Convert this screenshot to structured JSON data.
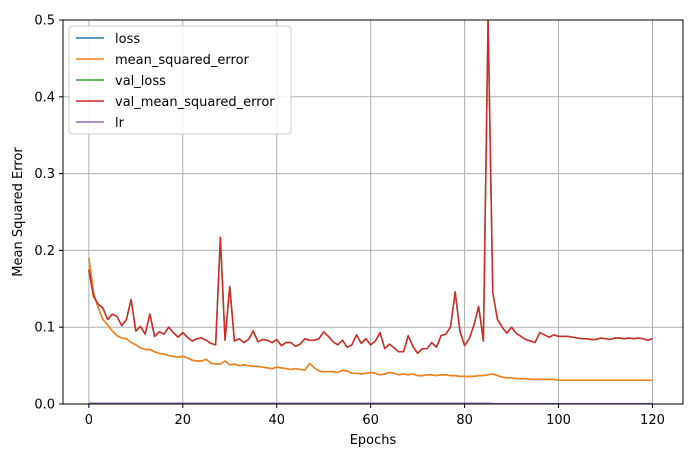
{
  "chart_data": {
    "type": "line",
    "xlabel": "Epochs",
    "ylabel": "Mean Squared Error",
    "xlim": [
      -5.5,
      126.5
    ],
    "ylim": [
      0,
      0.5
    ],
    "xticks": [
      0,
      20,
      40,
      60,
      80,
      100,
      120
    ],
    "yticks": [
      0.0,
      0.1,
      0.2,
      0.3,
      0.4,
      0.5
    ],
    "xtick_labels": [
      "0",
      "20",
      "40",
      "60",
      "80",
      "100",
      "120"
    ],
    "ytick_labels": [
      "0.0",
      "0.1",
      "0.2",
      "0.3",
      "0.4",
      "0.5"
    ],
    "grid": true,
    "legend_position": "top-left",
    "x": [
      0,
      1,
      2,
      3,
      4,
      5,
      6,
      7,
      8,
      9,
      10,
      11,
      12,
      13,
      14,
      15,
      16,
      17,
      18,
      19,
      20,
      21,
      22,
      23,
      24,
      25,
      26,
      27,
      28,
      29,
      30,
      31,
      32,
      33,
      34,
      35,
      36,
      37,
      38,
      39,
      40,
      41,
      42,
      43,
      44,
      45,
      46,
      47,
      48,
      49,
      50,
      51,
      52,
      53,
      54,
      55,
      56,
      57,
      58,
      59,
      60,
      61,
      62,
      63,
      64,
      65,
      66,
      67,
      68,
      69,
      70,
      71,
      72,
      73,
      74,
      75,
      76,
      77,
      78,
      79,
      80,
      81,
      82,
      83,
      84,
      85,
      86,
      87,
      88,
      89,
      90,
      91,
      92,
      93,
      94,
      95,
      96,
      97,
      98,
      99,
      100,
      101,
      102,
      103,
      104,
      105,
      106,
      107,
      108,
      109,
      110,
      111,
      112,
      113,
      114,
      115,
      116,
      117,
      118,
      119,
      120
    ],
    "series": [
      {
        "name": "loss",
        "color": "#1f77b4",
        "values": [
          0.19,
          0.145,
          0.125,
          0.11,
          0.103,
          0.095,
          0.089,
          0.086,
          0.085,
          0.08,
          0.077,
          0.073,
          0.071,
          0.071,
          0.068,
          0.066,
          0.065,
          0.063,
          0.062,
          0.061,
          0.062,
          0.06,
          0.057,
          0.056,
          0.056,
          0.058,
          0.053,
          0.052,
          0.052,
          0.056,
          0.051,
          0.052,
          0.05,
          0.051,
          0.05,
          0.049,
          0.049,
          0.048,
          0.047,
          0.046,
          0.048,
          0.047,
          0.046,
          0.045,
          0.046,
          0.045,
          0.044,
          0.053,
          0.047,
          0.043,
          0.042,
          0.042,
          0.042,
          0.041,
          0.044,
          0.043,
          0.04,
          0.04,
          0.039,
          0.04,
          0.041,
          0.04,
          0.038,
          0.039,
          0.041,
          0.04,
          0.038,
          0.039,
          0.038,
          0.039,
          0.037,
          0.037,
          0.038,
          0.038,
          0.037,
          0.038,
          0.038,
          0.037,
          0.037,
          0.036,
          0.036,
          0.036,
          0.036,
          0.037,
          0.037,
          0.038,
          0.039,
          0.037,
          0.035,
          0.034,
          0.034,
          0.033,
          0.033,
          0.033,
          0.032,
          0.032,
          0.032,
          0.032,
          0.032,
          0.032,
          0.031,
          0.031,
          0.031,
          0.031,
          0.031,
          0.031,
          0.031,
          0.031,
          0.031,
          0.031,
          0.031,
          0.031,
          0.031,
          0.031,
          0.031,
          0.031,
          0.031,
          0.031,
          0.031,
          0.031,
          0.031
        ]
      },
      {
        "name": "mean_squared_error",
        "color": "#ff7f0e",
        "values": [
          0.19,
          0.145,
          0.125,
          0.11,
          0.103,
          0.095,
          0.089,
          0.086,
          0.085,
          0.08,
          0.077,
          0.073,
          0.071,
          0.071,
          0.068,
          0.066,
          0.065,
          0.063,
          0.062,
          0.061,
          0.062,
          0.06,
          0.057,
          0.056,
          0.056,
          0.058,
          0.053,
          0.052,
          0.052,
          0.056,
          0.051,
          0.052,
          0.05,
          0.051,
          0.05,
          0.049,
          0.049,
          0.048,
          0.047,
          0.046,
          0.048,
          0.047,
          0.046,
          0.045,
          0.046,
          0.045,
          0.044,
          0.053,
          0.047,
          0.043,
          0.042,
          0.042,
          0.042,
          0.041,
          0.044,
          0.043,
          0.04,
          0.04,
          0.039,
          0.04,
          0.041,
          0.04,
          0.038,
          0.039,
          0.041,
          0.04,
          0.038,
          0.039,
          0.038,
          0.039,
          0.037,
          0.037,
          0.038,
          0.038,
          0.037,
          0.038,
          0.038,
          0.037,
          0.037,
          0.036,
          0.036,
          0.036,
          0.036,
          0.037,
          0.037,
          0.038,
          0.039,
          0.037,
          0.035,
          0.034,
          0.034,
          0.033,
          0.033,
          0.033,
          0.032,
          0.032,
          0.032,
          0.032,
          0.032,
          0.032,
          0.031,
          0.031,
          0.031,
          0.031,
          0.031,
          0.031,
          0.031,
          0.031,
          0.031,
          0.031,
          0.031,
          0.031,
          0.031,
          0.031,
          0.031,
          0.031,
          0.031,
          0.031,
          0.031,
          0.031,
          0.031
        ]
      },
      {
        "name": "val_loss",
        "color": "#2ca02c",
        "values": [
          0.175,
          0.14,
          0.13,
          0.125,
          0.11,
          0.117,
          0.114,
          0.102,
          0.11,
          0.136,
          0.095,
          0.101,
          0.091,
          0.117,
          0.088,
          0.094,
          0.091,
          0.1,
          0.093,
          0.087,
          0.093,
          0.087,
          0.082,
          0.085,
          0.086,
          0.083,
          0.079,
          0.077,
          0.217,
          0.083,
          0.153,
          0.082,
          0.085,
          0.08,
          0.084,
          0.095,
          0.081,
          0.084,
          0.083,
          0.08,
          0.084,
          0.076,
          0.08,
          0.08,
          0.075,
          0.078,
          0.085,
          0.083,
          0.083,
          0.085,
          0.094,
          0.088,
          0.081,
          0.077,
          0.083,
          0.074,
          0.077,
          0.09,
          0.079,
          0.085,
          0.077,
          0.082,
          0.093,
          0.072,
          0.078,
          0.073,
          0.068,
          0.068,
          0.089,
          0.075,
          0.066,
          0.072,
          0.072,
          0.08,
          0.074,
          0.089,
          0.091,
          0.1,
          0.146,
          0.095,
          0.076,
          0.085,
          0.103,
          0.127,
          0.082,
          0.5,
          0.145,
          0.11,
          0.1,
          0.092,
          0.1,
          0.092,
          0.088,
          0.084,
          0.082,
          0.08,
          0.093,
          0.09,
          0.087,
          0.09,
          0.088,
          0.088,
          0.088,
          0.087,
          0.086,
          0.085,
          0.085,
          0.084,
          0.084,
          0.086,
          0.085,
          0.084,
          0.086,
          0.086,
          0.085,
          0.086,
          0.085,
          0.086,
          0.085,
          0.083,
          0.085
        ]
      },
      {
        "name": "val_mean_squared_error",
        "color": "#d62728",
        "values": [
          0.175,
          0.14,
          0.13,
          0.125,
          0.11,
          0.117,
          0.114,
          0.102,
          0.11,
          0.136,
          0.095,
          0.101,
          0.091,
          0.117,
          0.088,
          0.094,
          0.091,
          0.1,
          0.093,
          0.087,
          0.093,
          0.087,
          0.082,
          0.085,
          0.086,
          0.083,
          0.079,
          0.077,
          0.217,
          0.083,
          0.153,
          0.082,
          0.085,
          0.08,
          0.084,
          0.095,
          0.081,
          0.084,
          0.083,
          0.08,
          0.084,
          0.076,
          0.08,
          0.08,
          0.075,
          0.078,
          0.085,
          0.083,
          0.083,
          0.085,
          0.094,
          0.088,
          0.081,
          0.077,
          0.083,
          0.074,
          0.077,
          0.09,
          0.079,
          0.085,
          0.077,
          0.082,
          0.093,
          0.072,
          0.078,
          0.073,
          0.068,
          0.068,
          0.089,
          0.075,
          0.066,
          0.072,
          0.072,
          0.08,
          0.074,
          0.089,
          0.091,
          0.1,
          0.146,
          0.095,
          0.076,
          0.085,
          0.103,
          0.127,
          0.082,
          0.5,
          0.145,
          0.11,
          0.1,
          0.092,
          0.1,
          0.092,
          0.088,
          0.084,
          0.082,
          0.08,
          0.093,
          0.09,
          0.087,
          0.09,
          0.088,
          0.088,
          0.088,
          0.087,
          0.086,
          0.085,
          0.085,
          0.084,
          0.084,
          0.086,
          0.085,
          0.084,
          0.086,
          0.086,
          0.085,
          0.086,
          0.085,
          0.086,
          0.085,
          0.083,
          0.085
        ]
      },
      {
        "name": "lr",
        "color": "#9467bd",
        "values": [
          0.001,
          0.001,
          0.001,
          0.001,
          0.001,
          0.001,
          0.001,
          0.001,
          0.001,
          0.001,
          0.001,
          0.001,
          0.001,
          0.001,
          0.001,
          0.001,
          0.001,
          0.001,
          0.001,
          0.001,
          0.001,
          0.001,
          0.001,
          0.001,
          0.001,
          0.001,
          0.001,
          0.001,
          0.001,
          0.001,
          0.001,
          0.001,
          0.001,
          0.001,
          0.001,
          0.001,
          0.001,
          0.001,
          0.001,
          0.001,
          0.001,
          0.001,
          0.001,
          0.001,
          0.001,
          0.001,
          0.001,
          0.001,
          0.001,
          0.001,
          0.001,
          0.001,
          0.001,
          0.001,
          0.001,
          0.001,
          0.001,
          0.001,
          0.001,
          0.001,
          0.001,
          0.001,
          0.001,
          0.001,
          0.001,
          0.001,
          0.001,
          0.001,
          0.001,
          0.001,
          0.001,
          0.001,
          0.001,
          0.001,
          0.001,
          0.001,
          0.001,
          0.001,
          0.001,
          0.001,
          0.001,
          0.001,
          0.001,
          0.001,
          0.001,
          0.001,
          0.0005,
          0.0005,
          0.0005,
          0.0005,
          0.0005,
          0.0005,
          0.0005,
          0.0005,
          0.0005,
          0.0005,
          0.0005,
          0.0005,
          0.0005,
          0.0005,
          0.0005,
          0.0005,
          0.0005,
          0.0005,
          0.0005,
          0.0005,
          0.0005,
          0.0005,
          0.0005,
          0.0005,
          0.0005,
          0.0005,
          0.0005,
          0.0005,
          0.0005,
          0.0005,
          0.0005,
          0.0005,
          0.0005,
          0.0005,
          0.0005
        ]
      }
    ]
  }
}
